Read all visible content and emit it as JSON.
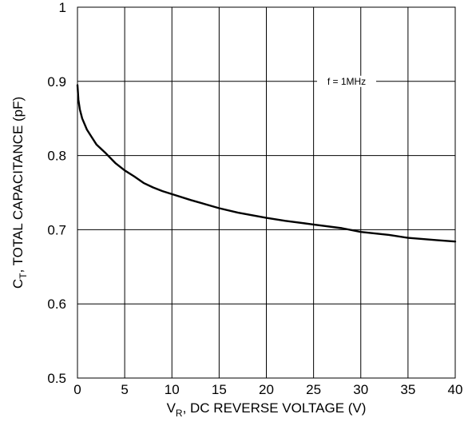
{
  "chart_data": {
    "type": "line",
    "title": "",
    "xlabel_main": "V",
    "xlabel_sub": "R",
    "xlabel_rest": ", DC REVERSE VOLTAGE (V)",
    "ylabel_main": "C",
    "ylabel_sub": "T",
    "ylabel_rest": ", TOTAL CAPACITANCE (pF)",
    "xlim": [
      0,
      40
    ],
    "ylim": [
      0.5,
      1
    ],
    "xticks": [
      0,
      5,
      10,
      15,
      20,
      25,
      30,
      35,
      40
    ],
    "xtick_labels": [
      "0",
      "5",
      "10",
      "15",
      "20",
      "25",
      "30",
      "35",
      "40"
    ],
    "yticks": [
      0.5,
      0.6,
      0.7,
      0.8,
      0.9,
      1
    ],
    "ytick_labels": [
      "0.5",
      "0.6",
      "0.7",
      "0.8",
      "0.9",
      "1"
    ],
    "grid": true,
    "annotation": "f = 1MHz",
    "series": [
      {
        "color": "#000000",
        "x": [
          0,
          0.1,
          0.25,
          0.5,
          1,
          1.5,
          2,
          3,
          4,
          5,
          6,
          7,
          8,
          9,
          10,
          12,
          15,
          17,
          20,
          22,
          25,
          28,
          30,
          33,
          35,
          38,
          40
        ],
        "y": [
          0.895,
          0.875,
          0.862,
          0.85,
          0.835,
          0.825,
          0.815,
          0.803,
          0.79,
          0.78,
          0.772,
          0.763,
          0.757,
          0.752,
          0.748,
          0.74,
          0.729,
          0.723,
          0.716,
          0.712,
          0.707,
          0.702,
          0.697,
          0.693,
          0.689,
          0.686,
          0.684
        ]
      }
    ]
  }
}
